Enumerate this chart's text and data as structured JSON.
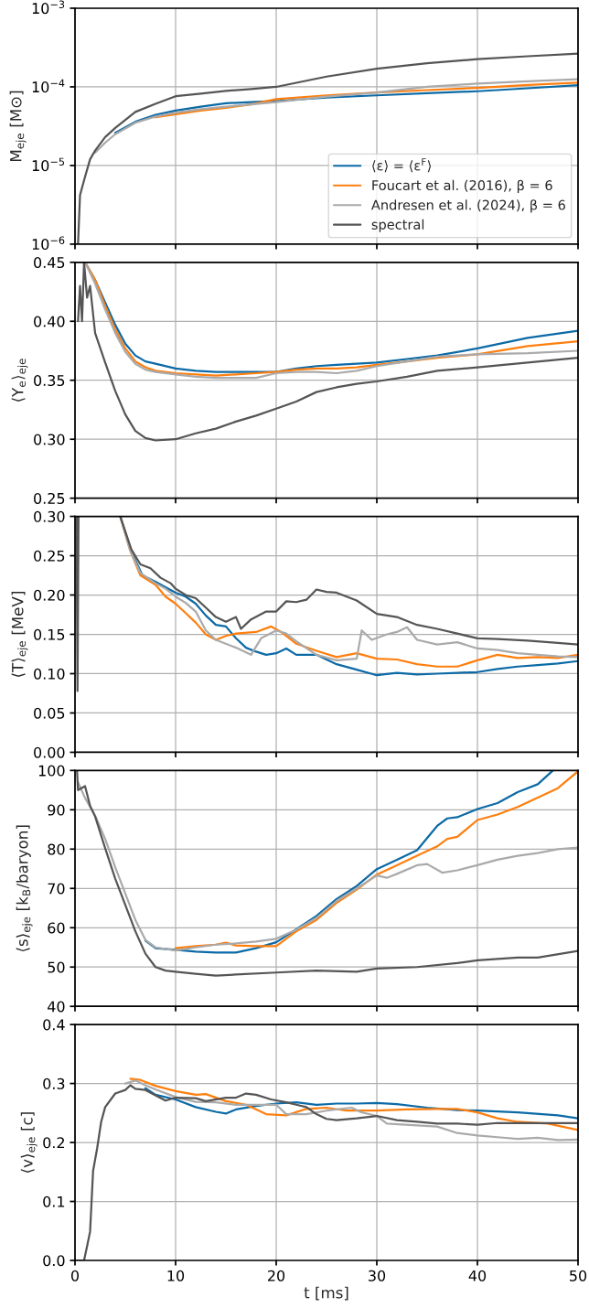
{
  "chart_data": [
    {
      "type": "line",
      "ylabel": "M$_{eje}$ [M⊙]",
      "log": "y",
      "grid": true,
      "legend": "bottom right",
      "tick_labels": "y",
      "xlim": [
        0,
        50
      ],
      "xticks": [
        0,
        10,
        20,
        30,
        40,
        50
      ],
      "ylim": [
        1e-06,
        0.001
      ],
      "yticks": [
        {
          "value": 1e-06,
          "label": "10$^{−6}$"
        },
        {
          "value": 1e-05,
          "label": "10$^{−5}$"
        },
        {
          "value": 0.0001,
          "label": "10$^{−4}$"
        },
        {
          "value": 0.001,
          "label": "10$^{−3}$"
        }
      ],
      "series": [
        {
          "name": "⟨ε⟩ = ⟨ε$^{F}$⟩",
          "color": "#0c6aa6",
          "x": [
            4,
            6,
            8,
            10,
            12.5,
            15,
            17.5,
            20,
            25,
            30,
            35,
            40,
            45,
            50
          ],
          "values": [
            2.6e-05,
            3.6e-05,
            4.4e-05,
            5e-05,
            5.6e-05,
            6.2e-05,
            6.4e-05,
            6.6e-05,
            7.3e-05,
            7.8e-05,
            8.3e-05,
            8.8e-05,
            9.6e-05,
            0.000105
          ]
        },
        {
          "name": "Foucart et al. (2016), β = 6",
          "color": "#ff7f0e",
          "x": [
            8,
            10,
            12.5,
            15,
            17.5,
            20,
            25,
            30,
            35,
            40,
            45,
            50
          ],
          "values": [
            4.1e-05,
            4.5e-05,
            5e-05,
            5.4e-05,
            6e-05,
            7e-05,
            7.8e-05,
            8.5e-05,
            9.1e-05,
            9.7e-05,
            0.000106,
            0.000113
          ]
        },
        {
          "name": "Andresen et al. (2024), β = 6",
          "color": "#aaaaaa",
          "x": [
            2,
            3,
            4,
            6,
            8,
            10,
            12.5,
            15,
            17.5,
            20,
            25,
            30,
            35,
            40,
            45,
            50
          ],
          "values": [
            1.45e-05,
            1.95e-05,
            2.5e-05,
            3.5e-05,
            4.2e-05,
            4.7e-05,
            5.2e-05,
            5.6e-05,
            6e-05,
            6.4e-05,
            7.5e-05,
            8.5e-05,
            0.0001,
            0.00011,
            0.000118,
            0.000125
          ]
        },
        {
          "name": "spectral",
          "color": "#555555",
          "x": [
            0.3,
            0.5,
            1,
            1.5,
            2,
            3,
            4,
            6,
            8,
            10,
            12.5,
            15,
            17.5,
            20,
            25,
            30,
            35,
            40,
            45,
            50
          ],
          "values": [
            1e-06,
            4.2e-06,
            7.2e-06,
            1.2e-05,
            1.55e-05,
            2.3e-05,
            3e-05,
            4.8e-05,
            6.1e-05,
            7.6e-05,
            8.2e-05,
            8.9e-05,
            9.4e-05,
            0.0001,
            0.000135,
            0.00017,
            0.0002,
            0.000225,
            0.000245,
            0.000265
          ]
        }
      ]
    },
    {
      "type": "line",
      "ylabel": "⟨Y$_{e}$⟩$_{eje}$",
      "grid": true,
      "tick_labels": "y",
      "xlim": [
        0,
        50
      ],
      "xticks": [
        0,
        10,
        20,
        30,
        40,
        50
      ],
      "ylim": [
        0.25,
        0.45
      ],
      "yticks": [
        {
          "value": 0.25,
          "label": "0.25"
        },
        {
          "value": 0.3,
          "label": "0.30"
        },
        {
          "value": 0.35,
          "label": "0.35"
        },
        {
          "value": 0.4,
          "label": "0.40"
        },
        {
          "value": 0.45,
          "label": "0.45"
        }
      ],
      "series": [
        {
          "color": "#0c6aa6",
          "x": [
            1,
            2,
            3,
            4,
            5,
            6,
            7,
            8,
            10,
            12,
            14,
            16,
            18,
            20,
            22,
            24,
            26,
            28,
            30,
            33,
            36,
            40,
            45,
            50
          ],
          "values": [
            0.45,
            0.435,
            0.416,
            0.397,
            0.381,
            0.371,
            0.366,
            0.364,
            0.36,
            0.358,
            0.357,
            0.357,
            0.357,
            0.357,
            0.36,
            0.362,
            0.363,
            0.364,
            0.365,
            0.368,
            0.371,
            0.377,
            0.386,
            0.392
          ]
        },
        {
          "color": "#ff7f0e",
          "x": [
            1,
            2,
            3,
            4,
            5,
            6,
            7,
            8,
            10,
            12,
            14,
            16,
            18,
            20,
            22,
            24,
            26,
            28,
            30,
            33,
            36,
            40,
            45,
            50
          ],
          "values": [
            0.45,
            0.435,
            0.413,
            0.393,
            0.377,
            0.366,
            0.361,
            0.358,
            0.356,
            0.355,
            0.354,
            0.355,
            0.356,
            0.357,
            0.359,
            0.36,
            0.36,
            0.361,
            0.363,
            0.366,
            0.369,
            0.372,
            0.379,
            0.383
          ]
        },
        {
          "color": "#aaaaaa",
          "x": [
            1,
            2,
            3,
            4,
            5,
            6,
            7,
            8,
            10,
            12,
            14,
            16,
            18,
            20,
            22,
            24,
            26,
            28,
            30,
            33,
            36,
            40,
            45,
            50
          ],
          "values": [
            0.45,
            0.432,
            0.41,
            0.39,
            0.374,
            0.364,
            0.359,
            0.357,
            0.355,
            0.353,
            0.352,
            0.352,
            0.352,
            0.356,
            0.357,
            0.357,
            0.356,
            0.358,
            0.362,
            0.366,
            0.37,
            0.372,
            0.373,
            0.375
          ]
        },
        {
          "color": "#555555",
          "x": [
            0.3,
            0.5,
            0.7,
            0.9,
            1.2,
            1.5,
            2,
            3,
            4,
            5,
            6,
            7,
            8,
            10,
            12,
            14,
            16,
            18,
            20,
            22,
            24,
            26,
            28,
            30,
            33,
            36,
            40,
            45,
            50
          ],
          "values": [
            0.4,
            0.43,
            0.4,
            0.45,
            0.42,
            0.43,
            0.39,
            0.365,
            0.341,
            0.321,
            0.307,
            0.301,
            0.299,
            0.3,
            0.305,
            0.309,
            0.315,
            0.32,
            0.326,
            0.332,
            0.34,
            0.344,
            0.347,
            0.349,
            0.353,
            0.358,
            0.361,
            0.365,
            0.369
          ]
        }
      ]
    },
    {
      "type": "line",
      "ylabel": "⟨T⟩$_{eje}$ [MeV]",
      "grid": true,
      "tick_labels": "y",
      "xlim": [
        0,
        50
      ],
      "xticks": [
        0,
        10,
        20,
        30,
        40,
        50
      ],
      "ylim": [
        0,
        0.3
      ],
      "yticks": [
        {
          "value": 0,
          "label": "0.00"
        },
        {
          "value": 0.05,
          "label": "0.05"
        },
        {
          "value": 0.1,
          "label": "0.10"
        },
        {
          "value": 0.15,
          "label": "0.15"
        },
        {
          "value": 0.2,
          "label": "0.20"
        },
        {
          "value": 0.25,
          "label": "0.25"
        },
        {
          "value": 0.3,
          "label": "0.30"
        }
      ],
      "series": [
        {
          "color": "#0c6aa6",
          "x": [
            4.5,
            5.5,
            6.7,
            8,
            9,
            10,
            11,
            12,
            13,
            14,
            15,
            16,
            17,
            18,
            19,
            20,
            21,
            22,
            24,
            26,
            28,
            30,
            32,
            34,
            36,
            38,
            40,
            42,
            44,
            46,
            48,
            50
          ],
          "values": [
            0.3,
            0.258,
            0.225,
            0.217,
            0.21,
            0.203,
            0.198,
            0.189,
            0.174,
            0.162,
            0.16,
            0.145,
            0.133,
            0.128,
            0.124,
            0.126,
            0.132,
            0.124,
            0.124,
            0.112,
            0.105,
            0.098,
            0.101,
            0.099,
            0.1,
            0.101,
            0.102,
            0.106,
            0.109,
            0.111,
            0.113,
            0.116
          ]
        },
        {
          "color": "#ff7f0e",
          "x": [
            4.5,
            5.5,
            6.5,
            8,
            9,
            10,
            11,
            12,
            13,
            14,
            15,
            16,
            18,
            19.5,
            20.5,
            22,
            24,
            26,
            28,
            30,
            32,
            34,
            36,
            38,
            40,
            42,
            44,
            46,
            48,
            50
          ],
          "values": [
            0.3,
            0.256,
            0.225,
            0.213,
            0.198,
            0.189,
            0.177,
            0.165,
            0.15,
            0.143,
            0.148,
            0.151,
            0.153,
            0.16,
            0.153,
            0.138,
            0.129,
            0.121,
            0.126,
            0.119,
            0.118,
            0.112,
            0.109,
            0.109,
            0.117,
            0.124,
            0.12,
            0.121,
            0.12,
            0.124
          ]
        },
        {
          "color": "#aaaaaa",
          "x": [
            4.5,
            5.5,
            6.5,
            8,
            9,
            10,
            11,
            12,
            13,
            14,
            16,
            17.5,
            18.5,
            20,
            21,
            22,
            24,
            26,
            28,
            28.5,
            29.5,
            31,
            32,
            33,
            34,
            36,
            38,
            40,
            42,
            44,
            46,
            48,
            50
          ],
          "values": [
            0.3,
            0.256,
            0.228,
            0.215,
            0.208,
            0.198,
            0.19,
            0.179,
            0.155,
            0.143,
            0.133,
            0.124,
            0.145,
            0.155,
            0.151,
            0.141,
            0.124,
            0.117,
            0.119,
            0.155,
            0.143,
            0.15,
            0.153,
            0.159,
            0.143,
            0.137,
            0.14,
            0.132,
            0.13,
            0.126,
            0.124,
            0.122,
            0.121
          ]
        },
        {
          "color": "#555555",
          "x": [
            0.15,
            0.25,
            0.35,
            2,
            4.5,
            5.6,
            6.5,
            7.5,
            8.5,
            9.5,
            10,
            11,
            12,
            13,
            14,
            15,
            16,
            16.5,
            17.5,
            19,
            20,
            21,
            22,
            23,
            24,
            25,
            26,
            28,
            30,
            32,
            34,
            36,
            38,
            40,
            42,
            45,
            48,
            50
          ],
          "values": [
            0.3,
            0.078,
            0.3,
            null,
            0.3,
            0.258,
            0.239,
            0.234,
            0.222,
            0.215,
            0.208,
            0.2,
            0.196,
            0.184,
            0.172,
            0.166,
            0.172,
            0.157,
            0.169,
            0.179,
            0.179,
            0.192,
            0.191,
            0.194,
            0.207,
            0.204,
            0.203,
            0.193,
            0.176,
            0.172,
            0.162,
            0.157,
            0.151,
            0.145,
            0.144,
            0.142,
            0.139,
            0.137
          ]
        }
      ]
    },
    {
      "type": "line",
      "ylabel": "⟨s⟩$_{eje}$ [k$_{B}$/baryon]",
      "grid": true,
      "tick_labels": "y",
      "xlim": [
        0,
        50
      ],
      "xticks": [
        0,
        10,
        20,
        30,
        40,
        50
      ],
      "ylim": [
        40,
        100
      ],
      "yticks": [
        40,
        50,
        60,
        70,
        80,
        90,
        100
      ],
      "series": [
        {
          "color": "#0c6aa6",
          "x": [
            7,
            8,
            10,
            12,
            14,
            16,
            18,
            20,
            22,
            24,
            26,
            28,
            30,
            32,
            34,
            36,
            37,
            38,
            40,
            42,
            44,
            46,
            47.5
          ],
          "values": [
            56.7,
            54.8,
            54.4,
            53.9,
            53.7,
            53.7,
            54.8,
            56.3,
            59.6,
            63.0,
            67.3,
            70.6,
            74.9,
            77.3,
            79.7,
            85.9,
            87.8,
            88.1,
            90.2,
            91.7,
            94.5,
            96.5,
            100
          ]
        },
        {
          "color": "#ff7f0e",
          "x": [
            10,
            12,
            14,
            15,
            16,
            18,
            20,
            22,
            24,
            26,
            28,
            30,
            32,
            34,
            36,
            37,
            38,
            40,
            42,
            44,
            46,
            48,
            50
          ],
          "values": [
            54.8,
            55.3,
            55.7,
            56.2,
            55.5,
            55.3,
            55.3,
            59.1,
            62.0,
            66.3,
            69.7,
            73.5,
            75.9,
            78.3,
            80.7,
            82.6,
            83.1,
            87.4,
            88.8,
            90.7,
            93.1,
            95.5,
            99.8
          ]
        },
        {
          "color": "#aaaaaa",
          "x": [
            0.3,
            1,
            2,
            3,
            4,
            5,
            6,
            7,
            8,
            10,
            12,
            14,
            16,
            18,
            20,
            22,
            24,
            26,
            28,
            30,
            31,
            32,
            34,
            35,
            36.5,
            38,
            40,
            42,
            44,
            46,
            48,
            50
          ],
          "values": [
            97,
            93,
            88.5,
            82.6,
            75.4,
            68.7,
            62.0,
            56.9,
            55,
            54.2,
            55.0,
            55.7,
            56.0,
            56.5,
            57.2,
            59.5,
            62.5,
            66.8,
            70,
            73.3,
            72.7,
            73.7,
            75.9,
            76.2,
            74.0,
            74.6,
            75.9,
            77.3,
            78.3,
            79.0,
            80.0,
            80.4
          ]
        },
        {
          "color": "#555555",
          "x": [
            0.2,
            0.3,
            1,
            1.5,
            2,
            3,
            4,
            5,
            6,
            7,
            8,
            9,
            10,
            12,
            14,
            16,
            20,
            24,
            28,
            30,
            34,
            38,
            40,
            44,
            46,
            50
          ],
          "values": [
            100,
            95,
            96,
            91,
            88.3,
            80.2,
            72.5,
            65.8,
            59.1,
            53.4,
            50.0,
            49.1,
            48.8,
            48.3,
            47.8,
            48.1,
            48.6,
            49.1,
            48.8,
            49.6,
            50.0,
            51.0,
            51.7,
            52.4,
            52.4,
            54.1
          ]
        }
      ]
    },
    {
      "type": "line",
      "ylabel": "⟨v⟩$_{eje}$ [c]",
      "xlabel": "t [ms]",
      "grid": true,
      "xlim": [
        0,
        50
      ],
      "xticks": [
        0,
        10,
        20,
        30,
        40,
        50
      ],
      "ylim": [
        0,
        0.4
      ],
      "yticks": [
        {
          "value": 0,
          "label": "0.0"
        },
        0.1,
        0.2,
        0.3,
        0.4
      ],
      "series": [
        {
          "color": "#0c6aa6",
          "x": [
            7,
            8,
            10,
            12,
            14,
            15,
            16,
            18,
            20,
            22,
            24,
            26,
            28,
            30,
            32,
            35,
            38,
            40,
            44,
            48,
            50
          ],
          "values": [
            0.292,
            0.281,
            0.273,
            0.26,
            0.252,
            0.249,
            0.256,
            0.262,
            0.266,
            0.268,
            0.264,
            0.266,
            0.266,
            0.267,
            0.265,
            0.259,
            0.255,
            0.254,
            0.251,
            0.246,
            0.241
          ]
        },
        {
          "color": "#ff7f0e",
          "x": [
            5.5,
            6.5,
            8,
            10,
            12,
            13,
            15,
            17,
            19,
            21,
            23,
            25,
            27,
            30,
            33,
            36,
            38,
            40,
            42,
            44,
            47,
            50
          ],
          "values": [
            0.308,
            0.306,
            0.296,
            0.287,
            0.281,
            0.282,
            0.27,
            0.264,
            0.248,
            0.246,
            0.257,
            0.259,
            0.254,
            0.254,
            0.256,
            0.257,
            0.257,
            0.251,
            0.241,
            0.235,
            0.232,
            0.221
          ]
        },
        {
          "color": "#aaaaaa",
          "x": [
            5,
            6,
            7,
            8,
            10,
            12,
            14,
            16,
            18,
            20,
            21,
            23,
            25,
            27.5,
            28.5,
            30,
            31,
            34,
            36,
            38,
            40,
            42,
            44,
            46,
            48,
            50
          ],
          "values": [
            0.3,
            0.305,
            0.297,
            0.29,
            0.277,
            0.269,
            0.268,
            0.264,
            0.264,
            0.264,
            0.248,
            0.248,
            0.254,
            0.259,
            0.251,
            0.245,
            0.232,
            0.229,
            0.227,
            0.216,
            0.212,
            0.209,
            0.206,
            0.208,
            0.204,
            0.205
          ]
        },
        {
          "color": "#555555",
          "x": [
            0,
            0.9,
            1.2,
            1.5,
            1.8,
            2.2,
            2.6,
            3,
            4,
            5,
            5.5,
            6,
            7,
            8,
            9,
            10,
            12,
            13,
            15,
            16,
            17,
            18,
            19.5,
            21,
            22,
            23,
            24,
            25,
            26,
            28,
            30,
            32,
            34,
            36,
            38,
            40,
            42,
            46,
            50
          ],
          "values": [
            0,
            0,
            0.024,
            0.049,
            0.152,
            0.19,
            0.235,
            0.26,
            0.283,
            0.289,
            0.297,
            0.291,
            0.289,
            0.28,
            0.271,
            0.276,
            0.275,
            0.27,
            0.276,
            0.276,
            0.283,
            0.281,
            0.273,
            0.268,
            0.264,
            0.26,
            0.248,
            0.24,
            0.238,
            0.241,
            0.245,
            0.238,
            0.235,
            0.232,
            0.232,
            0.23,
            0.233,
            0.233,
            0.233
          ]
        }
      ]
    }
  ]
}
